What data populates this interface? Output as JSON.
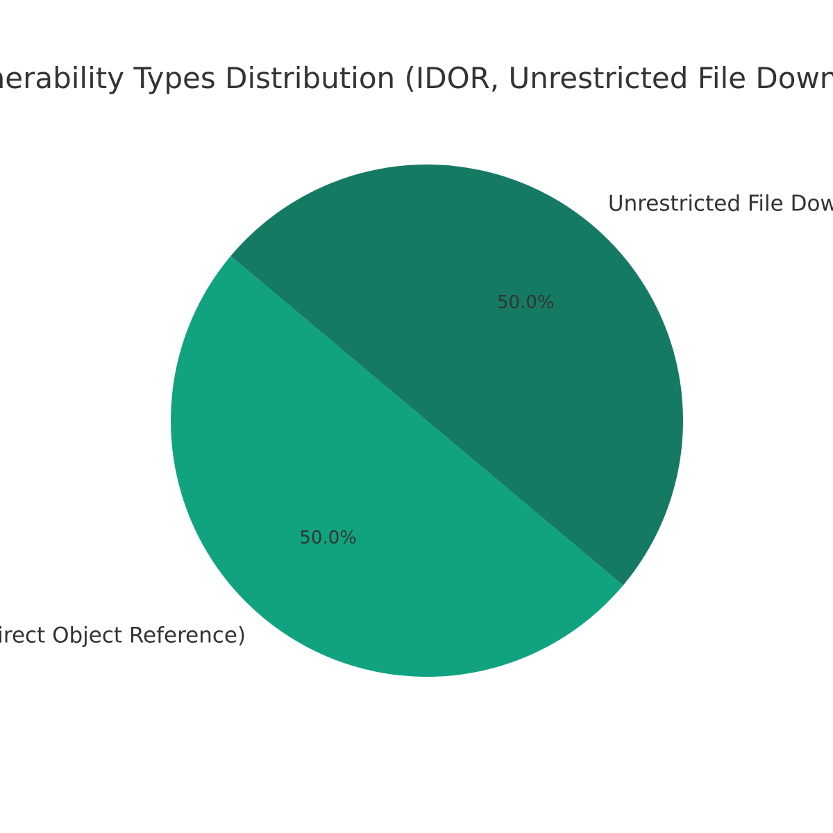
{
  "chart_data": {
    "type": "pie",
    "title": "Vulnerability Types Distribution (IDOR, Unrestricted File Download)",
    "slices": [
      {
        "label": "IDOR (Insecure Direct Object Reference)",
        "value": 50.0,
        "pct_label": "50.0%",
        "color": "#11a37f"
      },
      {
        "label": "Unrestricted File Download",
        "value": 50.0,
        "pct_label": "50.0%",
        "color": "#157a63"
      }
    ],
    "start_angle_deg": 140,
    "direction": "counterclockwise",
    "legend": "none"
  }
}
